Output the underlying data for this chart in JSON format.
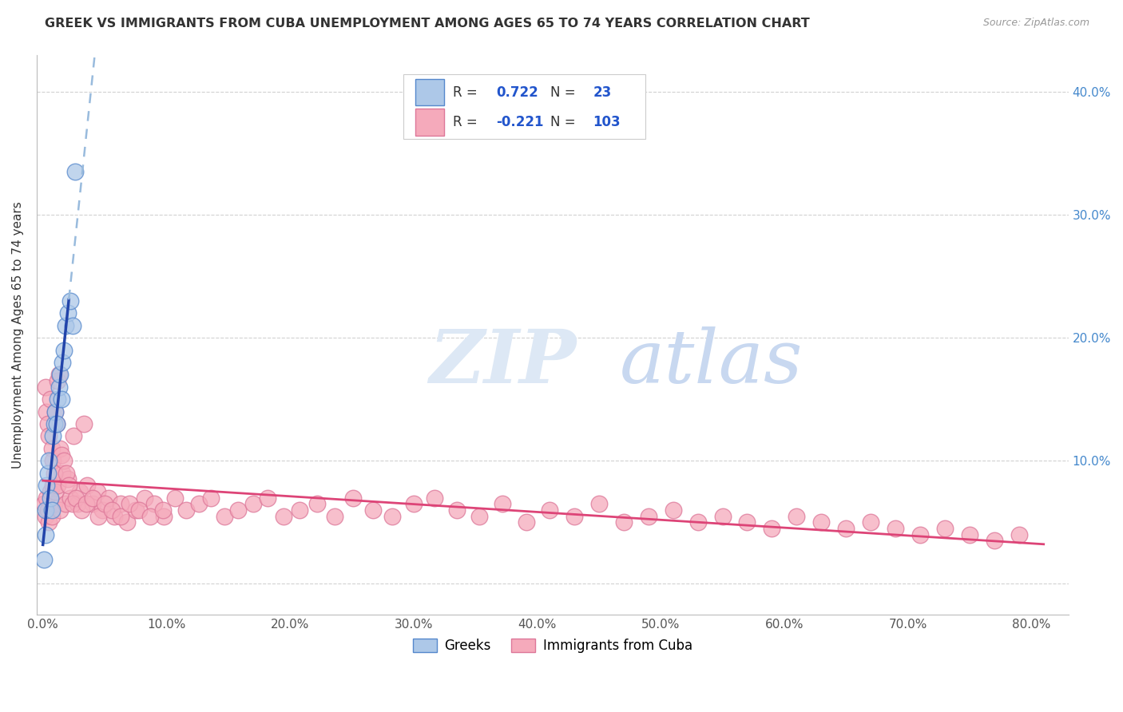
{
  "title": "GREEK VS IMMIGRANTS FROM CUBA UNEMPLOYMENT AMONG AGES 65 TO 74 YEARS CORRELATION CHART",
  "source": "Source: ZipAtlas.com",
  "ylabel": "Unemployment Among Ages 65 to 74 years",
  "xlim": [
    -0.005,
    0.83
  ],
  "ylim": [
    -0.025,
    0.43
  ],
  "xticks": [
    0.0,
    0.1,
    0.2,
    0.3,
    0.4,
    0.5,
    0.6,
    0.7,
    0.8
  ],
  "xticklabels": [
    "0.0%",
    "10.0%",
    "20.0%",
    "30.0%",
    "40.0%",
    "50.0%",
    "60.0%",
    "70.0%",
    "80.0%"
  ],
  "yticks": [
    0.0,
    0.1,
    0.2,
    0.3,
    0.4
  ],
  "right_yticklabels": [
    "",
    "10.0%",
    "20.0%",
    "30.0%",
    "40.0%"
  ],
  "greek_color": "#adc8e8",
  "greek_edge": "#5588cc",
  "cuba_color": "#f5aabb",
  "cuba_edge": "#dd7799",
  "greek_R": 0.722,
  "greek_N": 23,
  "cuba_R": -0.221,
  "cuba_N": 103,
  "greek_line_color": "#2244aa",
  "cuba_line_color": "#dd4477",
  "dashed_line_color": "#99bbdd",
  "background_color": "#ffffff",
  "grid_color": "#cccccc",
  "legend_labels": [
    "Greeks",
    "Immigrants from Cuba"
  ],
  "greek_x": [
    0.001,
    0.002,
    0.002,
    0.003,
    0.004,
    0.005,
    0.006,
    0.007,
    0.008,
    0.009,
    0.01,
    0.011,
    0.012,
    0.013,
    0.014,
    0.015,
    0.016,
    0.017,
    0.018,
    0.02,
    0.022,
    0.024,
    0.026
  ],
  "greek_y": [
    0.02,
    0.04,
    0.06,
    0.08,
    0.09,
    0.1,
    0.07,
    0.06,
    0.12,
    0.13,
    0.14,
    0.13,
    0.15,
    0.16,
    0.17,
    0.15,
    0.18,
    0.19,
    0.21,
    0.22,
    0.23,
    0.21,
    0.335
  ],
  "cuba_x": [
    0.001,
    0.002,
    0.003,
    0.004,
    0.005,
    0.006,
    0.007,
    0.008,
    0.009,
    0.01,
    0.012,
    0.014,
    0.016,
    0.018,
    0.02,
    0.022,
    0.025,
    0.028,
    0.03,
    0.033,
    0.036,
    0.04,
    0.044,
    0.048,
    0.053,
    0.058,
    0.063,
    0.068,
    0.075,
    0.082,
    0.09,
    0.098,
    0.107,
    0.116,
    0.126,
    0.136,
    0.147,
    0.158,
    0.17,
    0.182,
    0.195,
    0.208,
    0.222,
    0.236,
    0.251,
    0.267,
    0.283,
    0.3,
    0.317,
    0.335,
    0.353,
    0.372,
    0.391,
    0.41,
    0.43,
    0.45,
    0.47,
    0.49,
    0.51,
    0.53,
    0.55,
    0.57,
    0.59,
    0.61,
    0.63,
    0.65,
    0.67,
    0.69,
    0.71,
    0.73,
    0.75,
    0.77,
    0.79,
    0.002,
    0.003,
    0.004,
    0.005,
    0.006,
    0.007,
    0.008,
    0.009,
    0.01,
    0.011,
    0.012,
    0.013,
    0.014,
    0.015,
    0.017,
    0.019,
    0.021,
    0.024,
    0.027,
    0.031,
    0.035,
    0.04,
    0.045,
    0.05,
    0.056,
    0.063,
    0.07,
    0.078,
    0.087,
    0.097
  ],
  "cuba_y": [
    0.065,
    0.055,
    0.07,
    0.06,
    0.05,
    0.075,
    0.055,
    0.08,
    0.065,
    0.075,
    0.08,
    0.06,
    0.09,
    0.065,
    0.085,
    0.07,
    0.12,
    0.065,
    0.075,
    0.13,
    0.08,
    0.065,
    0.075,
    0.06,
    0.07,
    0.055,
    0.065,
    0.05,
    0.06,
    0.07,
    0.065,
    0.055,
    0.07,
    0.06,
    0.065,
    0.07,
    0.055,
    0.06,
    0.065,
    0.07,
    0.055,
    0.06,
    0.065,
    0.055,
    0.07,
    0.06,
    0.055,
    0.065,
    0.07,
    0.06,
    0.055,
    0.065,
    0.05,
    0.06,
    0.055,
    0.065,
    0.05,
    0.055,
    0.06,
    0.05,
    0.055,
    0.05,
    0.045,
    0.055,
    0.05,
    0.045,
    0.05,
    0.045,
    0.04,
    0.045,
    0.04,
    0.035,
    0.04,
    0.16,
    0.14,
    0.13,
    0.12,
    0.15,
    0.11,
    0.1,
    0.09,
    0.14,
    0.13,
    0.165,
    0.17,
    0.11,
    0.105,
    0.1,
    0.09,
    0.08,
    0.065,
    0.07,
    0.06,
    0.065,
    0.07,
    0.055,
    0.065,
    0.06,
    0.055,
    0.065,
    0.06,
    0.055,
    0.06
  ]
}
